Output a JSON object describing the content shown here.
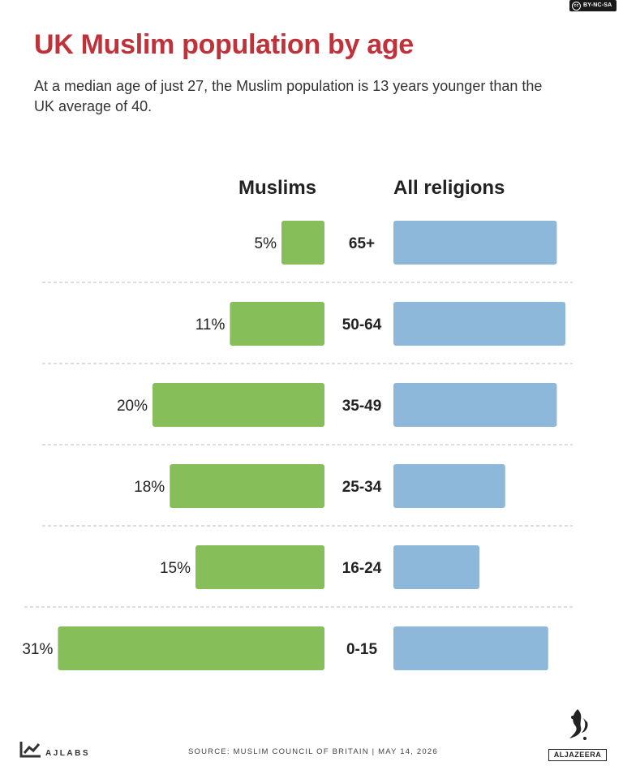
{
  "license": {
    "label": "BY-NC-SA",
    "icon": "cc-icon"
  },
  "header": {
    "title": "UK Muslim population by age",
    "subtitle": "At a median age of just 27, the Muslim population is 13 years younger than the UK average of 40."
  },
  "columns": {
    "left": "Muslims",
    "right": "All religions"
  },
  "colors": {
    "muslims": "#86bf5a",
    "all_religions": "#8db8d9",
    "title": "#c0323a",
    "divider": "#bbbbbb"
  },
  "chart_data": {
    "type": "bar",
    "title": "UK Muslim population by age",
    "categories": [
      "65+",
      "50-64",
      "35-49",
      "25-34",
      "16-24",
      "0-15"
    ],
    "series": [
      {
        "name": "Muslims",
        "values": [
          5,
          11,
          20,
          18,
          15,
          31
        ],
        "labels": [
          "5%",
          "11%",
          "20%",
          "18%",
          "15%",
          "31%"
        ]
      },
      {
        "name": "All religions",
        "values": [
          19,
          20,
          19,
          13,
          10,
          18
        ]
      }
    ],
    "grid": false,
    "legend": "top"
  },
  "footer": {
    "source": "SOURCE:  MUSLIM COUNCIL OF BRITAIN  |  MAY 14, 2026",
    "ajlabs": "AJLABS",
    "brand": "ALJAZEERA"
  }
}
